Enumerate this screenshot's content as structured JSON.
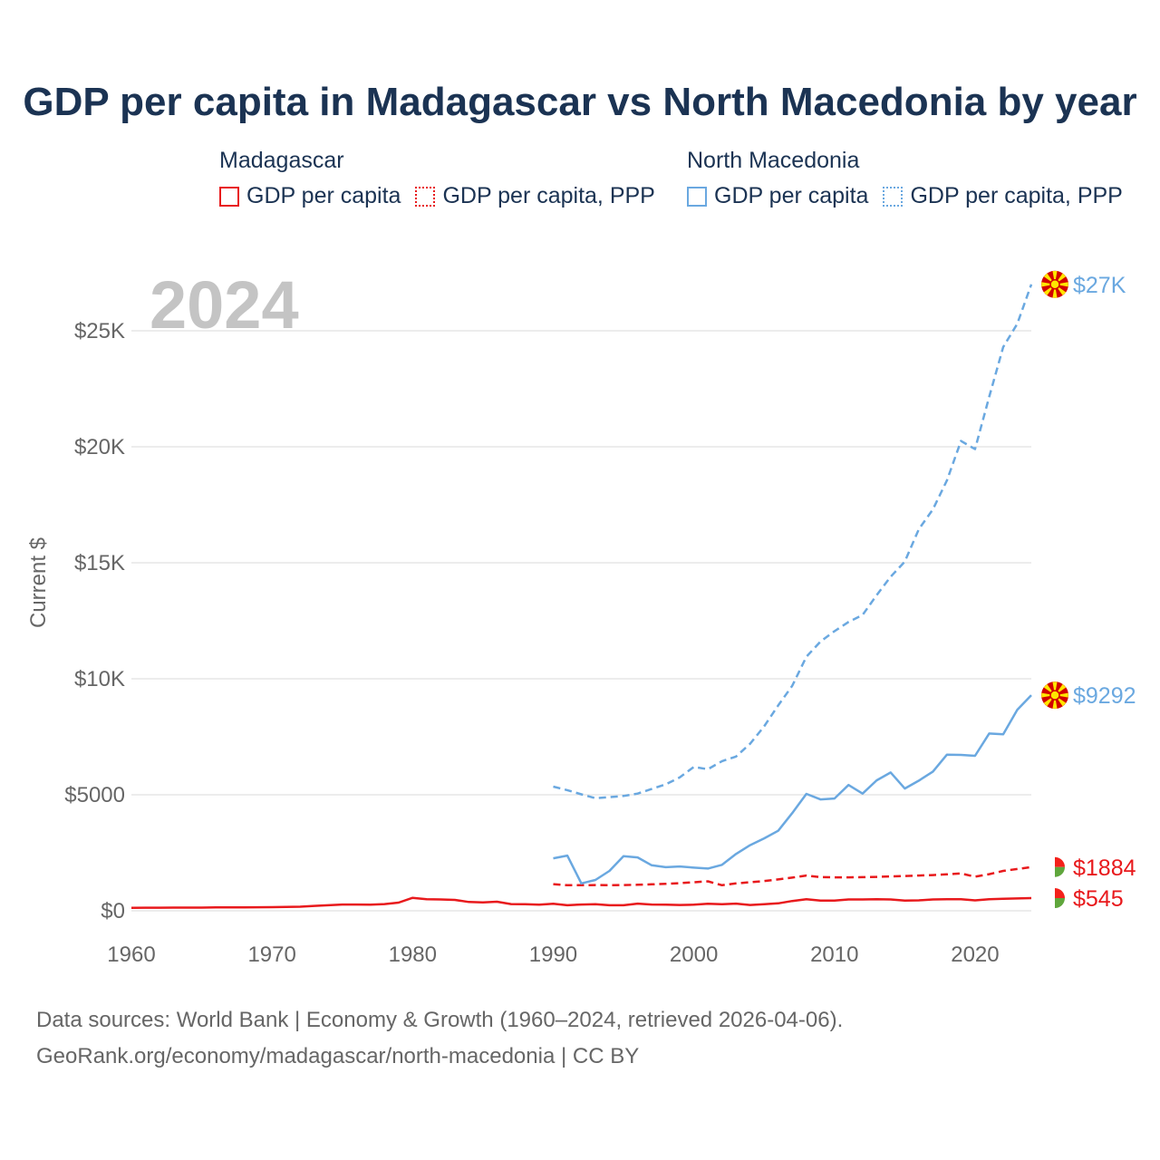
{
  "title": "GDP per capita in Madagascar vs North Macedonia by year",
  "legend": {
    "groups": [
      {
        "name": "Madagascar",
        "items": [
          "GDP per capita",
          "GDP per capita, PPP"
        ],
        "color": "#e8191c"
      },
      {
        "name": "North Macedonia",
        "items": [
          "GDP per capita",
          "GDP per capita, PPP"
        ],
        "color": "#6aa8e0"
      }
    ]
  },
  "year_label": "2024",
  "sources": {
    "line1": "Data sources: World Bank | Economy & Growth (1960–2024, retrieved 2026-04-06).",
    "line2": "GeoRank.org/economy/madagascar/north-macedonia | CC BY"
  },
  "colors": {
    "madagascar": "#e8191c",
    "north_macedonia": "#6aa8e0",
    "grid": "#e6e6e6",
    "axis_text": "#666666",
    "year": "#c4c4c4"
  },
  "chart_data": {
    "type": "line",
    "ylabel": "Current $",
    "xlim": [
      1960,
      2024
    ],
    "ylim": [
      0,
      27000
    ],
    "x_ticks": [
      1960,
      1970,
      1980,
      1990,
      2000,
      2010,
      2020
    ],
    "x_tick_labels": [
      "1960",
      "1970",
      "1980",
      "1990",
      "2000",
      "2010",
      "2020"
    ],
    "y_ticks": [
      0,
      5000,
      10000,
      15000,
      20000,
      25000
    ],
    "y_tick_labels": [
      "$0",
      "$5000",
      "$10K",
      "$15K",
      "$20K",
      "$25K"
    ],
    "series": [
      {
        "name": "Madagascar GDP per capita",
        "country": "madagascar",
        "style": "solid",
        "end_label": "$545",
        "x": [
          1960,
          1961,
          1962,
          1963,
          1964,
          1965,
          1966,
          1967,
          1968,
          1969,
          1970,
          1971,
          1972,
          1973,
          1974,
          1975,
          1976,
          1977,
          1978,
          1979,
          1980,
          1981,
          1982,
          1983,
          1984,
          1985,
          1986,
          1987,
          1988,
          1989,
          1990,
          1991,
          1992,
          1993,
          1994,
          1995,
          1996,
          1997,
          1998,
          1999,
          2000,
          2001,
          2002,
          2003,
          2004,
          2005,
          2006,
          2007,
          2008,
          2009,
          2010,
          2011,
          2012,
          2013,
          2014,
          2015,
          2016,
          2017,
          2018,
          2019,
          2020,
          2021,
          2022,
          2023,
          2024
        ],
        "values": [
          130,
          131,
          133,
          135,
          137,
          138,
          145,
          148,
          150,
          152,
          155,
          165,
          175,
          210,
          240,
          270,
          270,
          260,
          290,
          350,
          560,
          500,
          490,
          470,
          380,
          360,
          390,
          290,
          280,
          260,
          300,
          240,
          270,
          280,
          240,
          240,
          310,
          270,
          260,
          250,
          260,
          300,
          280,
          310,
          250,
          280,
          320,
          420,
          500,
          440,
          440,
          490,
          490,
          500,
          490,
          440,
          450,
          490,
          500,
          500,
          450,
          500,
          520,
          530,
          545
        ]
      },
      {
        "name": "Madagascar GDP per capita, PPP",
        "country": "madagascar",
        "style": "dashed",
        "end_label": "$1884",
        "x": [
          1990,
          1991,
          1992,
          1993,
          1994,
          1995,
          1996,
          1997,
          1998,
          1999,
          2000,
          2001,
          2002,
          2003,
          2004,
          2005,
          2006,
          2007,
          2008,
          2009,
          2010,
          2011,
          2012,
          2013,
          2014,
          2015,
          2016,
          2017,
          2018,
          2019,
          2020,
          2021,
          2022,
          2023,
          2024
        ],
        "values": [
          1150,
          1100,
          1100,
          1110,
          1100,
          1110,
          1120,
          1140,
          1160,
          1190,
          1230,
          1270,
          1100,
          1180,
          1230,
          1280,
          1350,
          1430,
          1520,
          1450,
          1440,
          1440,
          1450,
          1460,
          1480,
          1500,
          1520,
          1540,
          1570,
          1610,
          1470,
          1580,
          1720,
          1800,
          1884
        ]
      },
      {
        "name": "North Macedonia GDP per capita",
        "country": "north_macedonia",
        "style": "solid",
        "end_label": "$9292",
        "x": [
          1990,
          1991,
          1992,
          1993,
          1994,
          1995,
          1996,
          1997,
          1998,
          1999,
          2000,
          2001,
          2002,
          2003,
          2004,
          2005,
          2006,
          2007,
          2008,
          2009,
          2010,
          2011,
          2012,
          2013,
          2014,
          2015,
          2016,
          2017,
          2018,
          2019,
          2020,
          2021,
          2022,
          2023,
          2024
        ],
        "values": [
          2260,
          2380,
          1180,
          1330,
          1720,
          2350,
          2300,
          1960,
          1880,
          1910,
          1860,
          1820,
          1980,
          2450,
          2830,
          3120,
          3450,
          4210,
          5040,
          4800,
          4840,
          5420,
          5050,
          5620,
          5960,
          5270,
          5610,
          6000,
          6730,
          6720,
          6680,
          7640,
          7610,
          8660,
          9292
        ]
      },
      {
        "name": "North Macedonia GDP per capita, PPP",
        "country": "north_macedonia",
        "style": "dashed",
        "end_label": "$27K",
        "x": [
          1990,
          1991,
          1992,
          1993,
          1994,
          1995,
          1996,
          1997,
          1998,
          1999,
          2000,
          2001,
          2002,
          2003,
          2004,
          2005,
          2006,
          2007,
          2008,
          2009,
          2010,
          2011,
          2012,
          2013,
          2014,
          2015,
          2016,
          2017,
          2018,
          2019,
          2020,
          2021,
          2022,
          2023,
          2024
        ],
        "values": [
          5350,
          5200,
          5020,
          4850,
          4900,
          4950,
          5050,
          5250,
          5450,
          5750,
          6200,
          6100,
          6450,
          6650,
          7200,
          7950,
          8850,
          9700,
          10950,
          11600,
          12050,
          12450,
          12750,
          13600,
          14400,
          15050,
          16450,
          17300,
          18550,
          20250,
          19900,
          22150,
          24300,
          25300,
          27000
        ]
      }
    ]
  }
}
